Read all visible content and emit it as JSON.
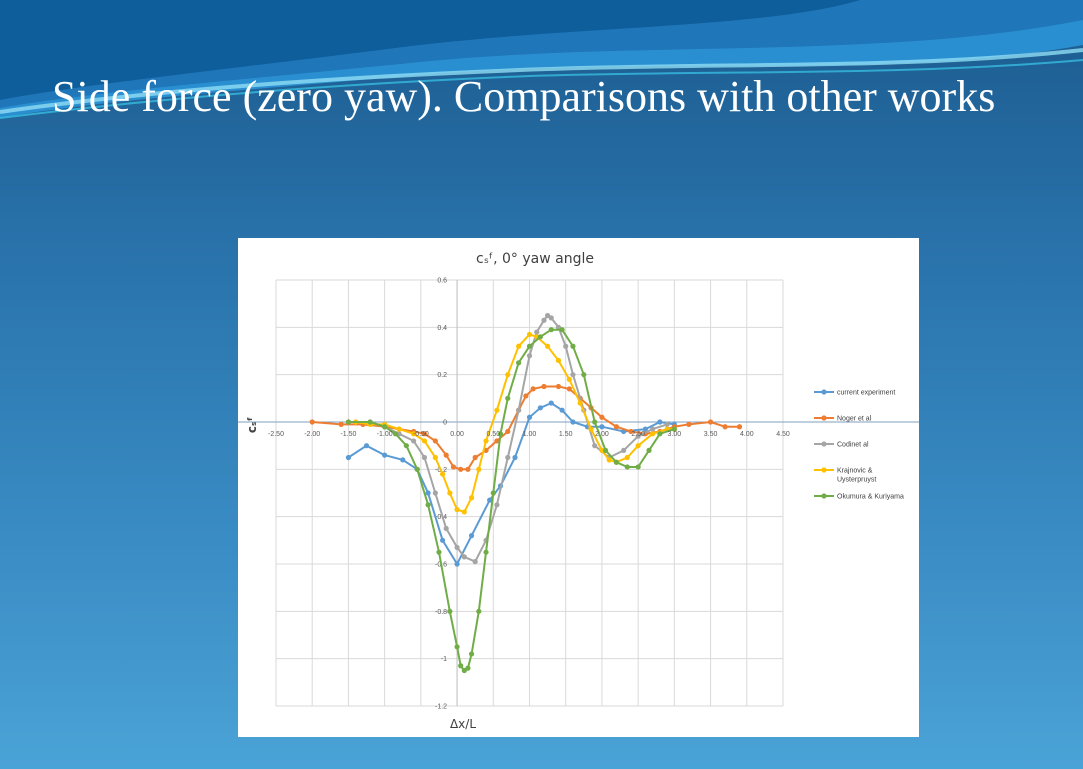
{
  "slide": {
    "title": "Side force (zero yaw). Comparisons with other works"
  },
  "chart_data": {
    "type": "line",
    "title": "cₛᶠ, 0° yaw angle",
    "xlabel": "Δx/L",
    "ylabel": "cₛᶠ",
    "xlim": [
      -2.5,
      4.5
    ],
    "ylim": [
      -1.2,
      0.6
    ],
    "x_ticks": [
      "-2.50",
      "-2.00",
      "-1.50",
      "-1.00",
      "-0.50",
      "0.00",
      "0.50",
      "1.00",
      "1.50",
      "2.00",
      "2.50",
      "3.00",
      "3.50",
      "4.00",
      "4.50"
    ],
    "y_ticks": [
      "0.6",
      "0.4",
      "0.2",
      "0",
      "-0.2",
      "-0.4",
      "-0.6",
      "-0.8",
      "-1",
      "-1.2"
    ],
    "grid": true,
    "legend_position": "right",
    "series": [
      {
        "name": "current experiment",
        "color": "#5b9bd5",
        "x": [
          -1.5,
          -1.25,
          -1.0,
          -0.75,
          -0.55,
          -0.4,
          -0.2,
          0.0,
          0.2,
          0.45,
          0.6,
          0.8,
          1.0,
          1.15,
          1.3,
          1.45,
          1.6,
          1.8,
          2.0,
          2.3,
          2.6,
          2.8,
          3.0
        ],
        "y": [
          -0.15,
          -0.1,
          -0.14,
          -0.16,
          -0.2,
          -0.3,
          -0.5,
          -0.6,
          -0.48,
          -0.33,
          -0.27,
          -0.15,
          0.02,
          0.06,
          0.08,
          0.05,
          0.0,
          -0.02,
          -0.02,
          -0.04,
          -0.03,
          0.0,
          -0.01
        ]
      },
      {
        "name": "Noger et al",
        "color": "#ed7d31",
        "x": [
          -2.0,
          -1.6,
          -1.3,
          -1.0,
          -0.8,
          -0.6,
          -0.45,
          -0.3,
          -0.15,
          -0.05,
          0.05,
          0.15,
          0.25,
          0.4,
          0.55,
          0.7,
          0.85,
          0.95,
          1.05,
          1.2,
          1.4,
          1.55,
          1.7,
          1.85,
          2.0,
          2.2,
          2.4,
          2.6,
          2.8,
          3.0,
          3.2,
          3.5,
          3.7,
          3.9
        ],
        "y": [
          0.0,
          -0.01,
          -0.01,
          -0.02,
          -0.03,
          -0.04,
          -0.05,
          -0.08,
          -0.14,
          -0.19,
          -0.2,
          -0.2,
          -0.15,
          -0.12,
          -0.08,
          -0.04,
          0.05,
          0.11,
          0.14,
          0.15,
          0.15,
          0.14,
          0.1,
          0.06,
          0.02,
          -0.02,
          -0.04,
          -0.05,
          -0.04,
          -0.02,
          -0.01,
          0.0,
          -0.02,
          -0.02
        ]
      },
      {
        "name": "Codinet al",
        "color": "#a5a5a5",
        "x": [
          -1.5,
          -1.2,
          -1.0,
          -0.8,
          -0.6,
          -0.45,
          -0.3,
          -0.15,
          0.0,
          0.1,
          0.25,
          0.4,
          0.55,
          0.7,
          0.85,
          1.0,
          1.1,
          1.2,
          1.25,
          1.3,
          1.4,
          1.5,
          1.6,
          1.75,
          1.9,
          2.1,
          2.3,
          2.5,
          2.7,
          2.9
        ],
        "y": [
          0.0,
          0.0,
          -0.02,
          -0.05,
          -0.08,
          -0.15,
          -0.3,
          -0.45,
          -0.53,
          -0.57,
          -0.59,
          -0.5,
          -0.35,
          -0.15,
          0.05,
          0.28,
          0.38,
          0.43,
          0.45,
          0.44,
          0.4,
          0.32,
          0.2,
          0.05,
          -0.1,
          -0.15,
          -0.12,
          -0.06,
          -0.03,
          -0.01
        ]
      },
      {
        "name": "Krajnovic & Uysterpruyst",
        "color": "#ffc000",
        "x": [
          -1.4,
          -1.2,
          -1.0,
          -0.8,
          -0.6,
          -0.45,
          -0.3,
          -0.2,
          -0.1,
          0.0,
          0.1,
          0.2,
          0.3,
          0.4,
          0.55,
          0.7,
          0.85,
          1.0,
          1.1,
          1.25,
          1.4,
          1.55,
          1.7,
          1.85,
          2.0,
          2.1,
          2.2,
          2.35,
          2.5,
          2.7,
          2.9,
          3.0
        ],
        "y": [
          0.0,
          -0.01,
          -0.01,
          -0.03,
          -0.05,
          -0.08,
          -0.15,
          -0.22,
          -0.3,
          -0.37,
          -0.38,
          -0.32,
          -0.2,
          -0.08,
          0.05,
          0.2,
          0.32,
          0.37,
          0.36,
          0.32,
          0.26,
          0.18,
          0.08,
          -0.03,
          -0.12,
          -0.16,
          -0.17,
          -0.15,
          -0.1,
          -0.05,
          -0.03,
          -0.03
        ]
      },
      {
        "name": "Okumura & Kuriyama",
        "color": "#70ad47",
        "x": [
          -1.5,
          -1.2,
          -1.0,
          -0.85,
          -0.7,
          -0.55,
          -0.4,
          -0.25,
          -0.1,
          0.0,
          0.05,
          0.1,
          0.15,
          0.2,
          0.3,
          0.4,
          0.5,
          0.6,
          0.7,
          0.85,
          1.0,
          1.15,
          1.3,
          1.45,
          1.6,
          1.75,
          1.9,
          2.05,
          2.2,
          2.35,
          2.5,
          2.65,
          2.8,
          3.0
        ],
        "y": [
          0.0,
          0.0,
          -0.02,
          -0.05,
          -0.1,
          -0.2,
          -0.35,
          -0.55,
          -0.8,
          -0.95,
          -1.03,
          -1.05,
          -1.04,
          -0.98,
          -0.8,
          -0.55,
          -0.3,
          -0.05,
          0.1,
          0.25,
          0.32,
          0.36,
          0.39,
          0.39,
          0.32,
          0.2,
          0.0,
          -0.12,
          -0.17,
          -0.19,
          -0.19,
          -0.12,
          -0.05,
          -0.03
        ]
      }
    ]
  }
}
